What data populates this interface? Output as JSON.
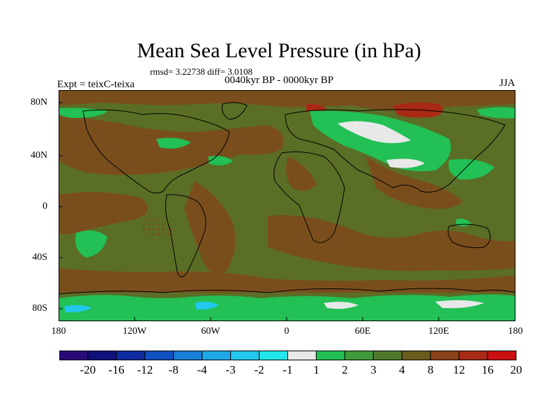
{
  "title": "Mean Sea Level Pressure (in hPa)",
  "stats": "rmsd= 3.22738 diff= 3.0108",
  "left_label": "Expt = teixC-teixa",
  "center_label": "0040kyr BP - 0000kyr BP",
  "right_label": "JJA",
  "lat_ticks": [
    "80N",
    "40N",
    "0",
    "40S",
    "80S"
  ],
  "lon_ticks": [
    "180",
    "120W",
    "60W",
    "0",
    "60E",
    "120E",
    "180"
  ],
  "colorbar": {
    "labels": [
      "-20",
      "-16",
      "-12",
      "-8",
      "-4",
      "-3",
      "-2",
      "-1",
      "1",
      "2",
      "3",
      "4",
      "8",
      "12",
      "16",
      "20"
    ],
    "colors": [
      "#2a0a78",
      "#10107a",
      "#0d2a9e",
      "#1050c0",
      "#1a7fd8",
      "#20a8e6",
      "#22c8ee",
      "#22e6ea",
      "#e8e8e8",
      "#22c055",
      "#3f9a3a",
      "#4f7a2e",
      "#6a5c1e",
      "#8a4218",
      "#a82a14",
      "#cc1010"
    ]
  },
  "palette": {
    "background_field": "#5a6e26",
    "positive_high": "#7a4e1c",
    "positive_mid": "#4f7a2e",
    "positive_low": "#22c055",
    "near_zero": "#e8e8e8",
    "negative": "#22c8ee",
    "strong_positive": "#a82a14"
  }
}
